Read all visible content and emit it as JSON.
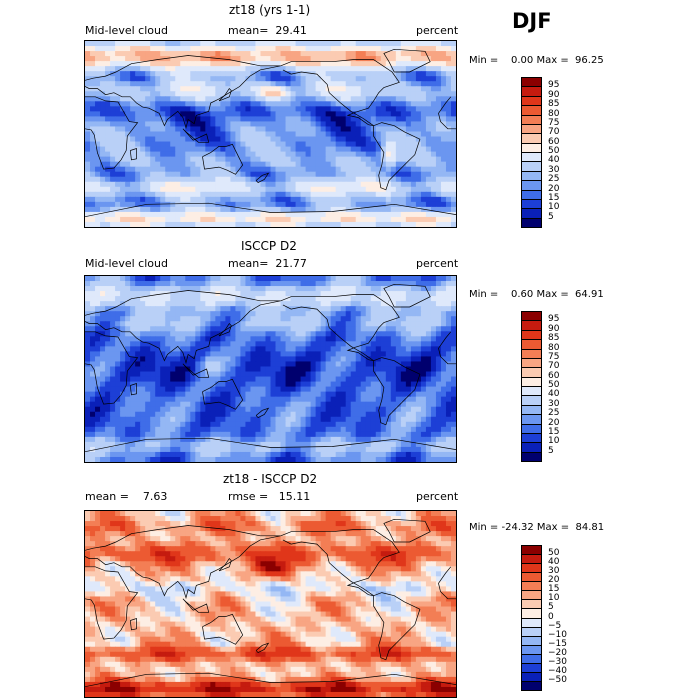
{
  "header": {
    "season": "DJF"
  },
  "panels": [
    {
      "title": "zt18 (yrs 1-1)",
      "left_text": "Mid-level cloud",
      "mid_text": "mean=  29.41",
      "right_text": "percent",
      "minmax": "Min =    0.00 Max =  96.25",
      "colorbar_labels": [
        "95",
        "90",
        "85",
        "80",
        "75",
        "70",
        "60",
        "50",
        "40",
        "30",
        "25",
        "20",
        "15",
        "10",
        "5"
      ],
      "colorbar_colors": [
        "#8b0000",
        "#c51b0f",
        "#e0361a",
        "#ec5a32",
        "#f37e55",
        "#f8a583",
        "#fbcbb2",
        "#fdeee4",
        "#dfe9fb",
        "#b9d0f7",
        "#94b7f4",
        "#6b96f0",
        "#3f6de8",
        "#1d3fd6",
        "#0a20b8",
        "#00006e"
      ]
    },
    {
      "title": "ISCCP D2",
      "left_text": "Mid-level cloud",
      "mid_text": "mean=  21.77",
      "right_text": "percent",
      "minmax": "Min =    0.60 Max =  64.91",
      "colorbar_labels": [
        "95",
        "90",
        "85",
        "80",
        "75",
        "70",
        "60",
        "50",
        "40",
        "30",
        "25",
        "20",
        "15",
        "10",
        "5"
      ],
      "colorbar_colors": [
        "#8b0000",
        "#c51b0f",
        "#e0361a",
        "#ec5a32",
        "#f37e55",
        "#f8a583",
        "#fbcbb2",
        "#fdeee4",
        "#dfe9fb",
        "#b9d0f7",
        "#94b7f4",
        "#6b96f0",
        "#3f6de8",
        "#1d3fd6",
        "#0a20b8",
        "#00006e"
      ]
    },
    {
      "title": "zt18 - ISCCP D2",
      "left_text": "mean =    7.63",
      "mid_text": "rmse =   15.11",
      "right_text": "percent",
      "minmax": "Min = -24.32 Max =  84.81",
      "colorbar_labels": [
        "50",
        "40",
        "30",
        "20",
        "15",
        "10",
        "5",
        "0",
        "−5",
        "−10",
        "−15",
        "−20",
        "−30",
        "−40",
        "−50"
      ],
      "colorbar_colors": [
        "#8b0000",
        "#c51b0f",
        "#e0361a",
        "#ec5a32",
        "#f37e55",
        "#f8a583",
        "#fbcbb2",
        "#fdeee4",
        "#dfe9fb",
        "#b9d0f7",
        "#94b7f4",
        "#6b96f0",
        "#3f6de8",
        "#1d3fd6",
        "#0a20b8",
        "#00006e"
      ]
    }
  ],
  "chart_data": [
    {
      "type": "heatmap",
      "title": "zt18 (yrs 1-1)",
      "variable": "Mid-level cloud",
      "units": "percent",
      "season": "DJF",
      "mean": 29.41,
      "min": 0.0,
      "max": 96.25,
      "levels": [
        5,
        10,
        15,
        20,
        25,
        30,
        40,
        50,
        60,
        70,
        75,
        80,
        85,
        90,
        95
      ]
    },
    {
      "type": "heatmap",
      "title": "ISCCP D2",
      "variable": "Mid-level cloud",
      "units": "percent",
      "season": "DJF",
      "mean": 21.77,
      "min": 0.6,
      "max": 64.91,
      "levels": [
        5,
        10,
        15,
        20,
        25,
        30,
        40,
        50,
        60,
        70,
        75,
        80,
        85,
        90,
        95
      ]
    },
    {
      "type": "heatmap",
      "title": "zt18 - ISCCP D2",
      "units": "percent",
      "season": "DJF",
      "mean": 7.63,
      "rmse": 15.11,
      "min": -24.32,
      "max": 84.81,
      "levels": [
        -50,
        -40,
        -30,
        -20,
        -15,
        -10,
        -5,
        0,
        5,
        10,
        15,
        20,
        30,
        40,
        50
      ]
    }
  ]
}
